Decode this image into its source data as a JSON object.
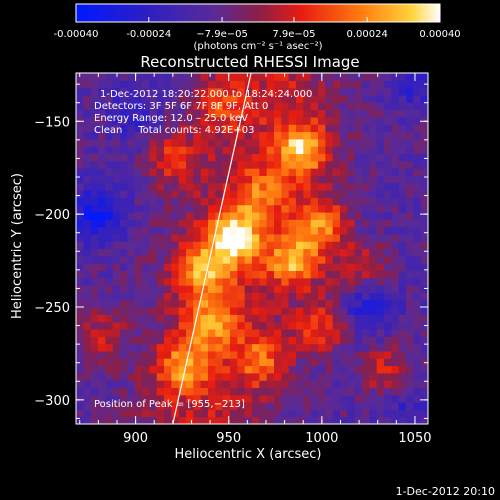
{
  "chart_data": {
    "type": "heatmap",
    "title": "Reconstructed RHESSI Image",
    "xlabel": "Heliocentric X (arcsec)",
    "ylabel": "Heliocentric Y (arcsec)",
    "xlim": [
      868,
      1057
    ],
    "ylim": [
      -313,
      -124
    ],
    "xticks": [
      900,
      950,
      1000,
      1050
    ],
    "yticks": [
      -150,
      -200,
      -250,
      -300
    ],
    "colorbar": {
      "ticks": [
        "-0.00040",
        "-0.00024",
        "−7.9e−05",
        "7.9e−05",
        "0.00024",
        "0.00040"
      ],
      "tick_values": [
        -0.0004,
        -0.00024,
        -7.9e-05,
        7.9e-05,
        0.00024,
        0.0004
      ],
      "range": [
        -0.0004,
        0.0004
      ],
      "units_label": "(photons cm⁻² s⁻¹ asec⁻²)",
      "colormap": "rhessi-hot: blue-purple-red-orange-yellow-white"
    },
    "annotations": {
      "time_range": "1-Dec-2012 18:20:22.000 to 18:24:24.000",
      "detectors": "Detectors: 3F 5F 6F 7F 8F 9F, Att 0",
      "energy_range": "Energy Range: 12.0 – 25.0 keV",
      "clean_info": "Clean     Total counts: 4.92E+03",
      "peak_position": "Position of Peak = [955,−213]"
    },
    "limb_line": {
      "x": [
        920,
        962
      ],
      "y": [
        -313,
        -124
      ]
    },
    "emission_sources": [
      {
        "x": 952,
        "y": -212,
        "value": 0.0004
      },
      {
        "x": 990,
        "y": -165,
        "value": 0.00036
      },
      {
        "x": 985,
        "y": -225,
        "value": 0.00033
      },
      {
        "x": 1000,
        "y": -205,
        "value": 0.0003
      },
      {
        "x": 935,
        "y": -230,
        "value": 0.00028
      },
      {
        "x": 940,
        "y": -258,
        "value": 0.00024
      },
      {
        "x": 925,
        "y": -282,
        "value": 0.00026
      },
      {
        "x": 968,
        "y": -278,
        "value": 0.00022
      },
      {
        "x": 1000,
        "y": -260,
        "value": 0.00022
      },
      {
        "x": 920,
        "y": -170,
        "value": 0.0002
      },
      {
        "x": 945,
        "y": -140,
        "value": 0.00018
      },
      {
        "x": 1035,
        "y": -285,
        "value": 0.0002
      },
      {
        "x": 880,
        "y": -265,
        "value": 0.00016
      },
      {
        "x": 968,
        "y": -190,
        "value": 0.00018
      },
      {
        "x": 1020,
        "y": -230,
        "value": 0.00018
      }
    ],
    "negative_sources": [
      {
        "x": 880,
        "y": -200,
        "value": -0.00024
      },
      {
        "x": 1025,
        "y": -250,
        "value": -0.0002
      },
      {
        "x": 900,
        "y": -145,
        "value": -0.00012
      },
      {
        "x": 1050,
        "y": -130,
        "value": -0.00012
      },
      {
        "x": 1045,
        "y": -300,
        "value": -0.00012
      }
    ]
  },
  "footer": {
    "timestamp": "1-Dec-2012 20:10"
  }
}
